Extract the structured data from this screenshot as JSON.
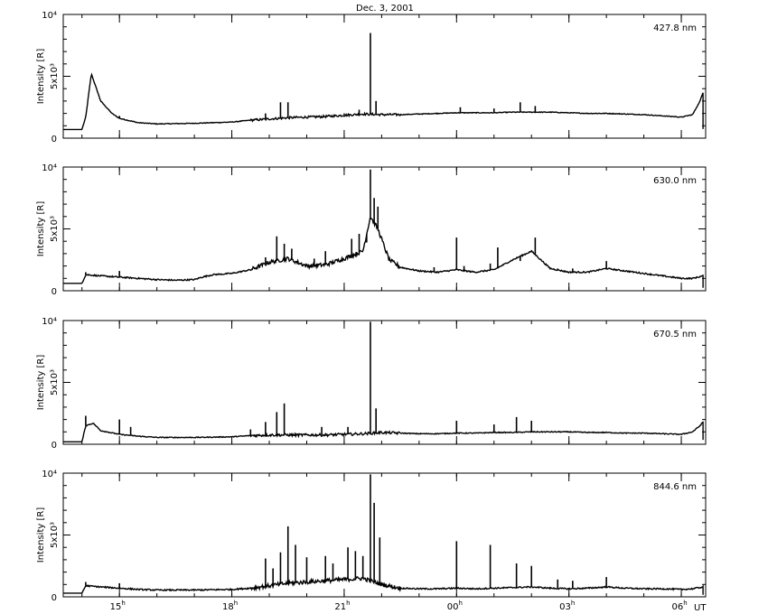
{
  "figure_title": "Dec.  3, 2001",
  "x_axis_unit": "UT",
  "chart_data": [
    {
      "type": "line",
      "label": "427.8 nm",
      "ylabel": "Intensity [R]",
      "ylim": [
        0,
        10000
      ],
      "ytick_labels": [
        "0",
        "5x10³",
        "10⁴"
      ],
      "x_unit": "UT hours (continuous, 24 = 00h next day)",
      "xlim": [
        13.5,
        30.65
      ],
      "xtick_labels": [
        "15h",
        "18h",
        "21h",
        "00h",
        "03h",
        "06h"
      ],
      "x": [
        13.5,
        14.0,
        14.1,
        14.25,
        14.5,
        14.8,
        15.0,
        15.5,
        16.0,
        17.0,
        18.0,
        18.5,
        19.0,
        19.5,
        20.0,
        20.5,
        21.0,
        21.5,
        22.0,
        22.5,
        23.0,
        23.5,
        24.0,
        24.5,
        25.0,
        25.5,
        26.0,
        26.5,
        27.0,
        27.5,
        28.0,
        28.5,
        29.0,
        29.5,
        30.0,
        30.3,
        30.5,
        30.58
      ],
      "y": [
        700,
        700,
        1700,
        5200,
        3000,
        2000,
        1600,
        1250,
        1150,
        1200,
        1300,
        1450,
        1550,
        1650,
        1700,
        1750,
        1850,
        1950,
        1900,
        1900,
        1950,
        2000,
        2050,
        2050,
        2050,
        2100,
        2100,
        2100,
        2050,
        2000,
        2000,
        1950,
        1900,
        1800,
        1700,
        1900,
        3000,
        3700
      ],
      "spikes": [
        {
          "x": 15.0,
          "y": 1800
        },
        {
          "x": 18.9,
          "y": 2000
        },
        {
          "x": 19.3,
          "y": 2900
        },
        {
          "x": 19.5,
          "y": 2900
        },
        {
          "x": 20.6,
          "y": 1900
        },
        {
          "x": 21.0,
          "y": 2000
        },
        {
          "x": 21.4,
          "y": 2300
        },
        {
          "x": 21.7,
          "y": 8500
        },
        {
          "x": 21.85,
          "y": 3000
        },
        {
          "x": 24.1,
          "y": 2500
        },
        {
          "x": 25.0,
          "y": 2400
        },
        {
          "x": 25.7,
          "y": 2900
        },
        {
          "x": 26.1,
          "y": 2600
        }
      ]
    },
    {
      "type": "line",
      "label": "630.0 nm",
      "ylabel": "Intensity [R]",
      "ylim": [
        0,
        10000
      ],
      "ytick_labels": [
        "0",
        "5x10³",
        "10⁴"
      ],
      "x_unit": "UT hours (continuous, 24 = 00h next day)",
      "xlim": [
        13.5,
        30.65
      ],
      "xtick_labels": [
        "15h",
        "18h",
        "21h",
        "00h",
        "03h",
        "06h"
      ],
      "x": [
        13.5,
        14.0,
        14.1,
        14.5,
        15.0,
        15.5,
        16.0,
        16.5,
        17.0,
        17.2,
        17.5,
        18.0,
        18.5,
        19.0,
        19.5,
        20.0,
        20.5,
        21.0,
        21.5,
        21.7,
        21.9,
        22.2,
        22.5,
        23.0,
        23.5,
        24.0,
        24.5,
        25.0,
        25.5,
        26.0,
        26.5,
        27.0,
        27.5,
        28.0,
        28.5,
        29.0,
        29.5,
        30.0,
        30.3,
        30.58
      ],
      "y": [
        600,
        600,
        1300,
        1200,
        1100,
        1000,
        900,
        850,
        900,
        1100,
        1300,
        1400,
        1700,
        2300,
        2600,
        2000,
        2100,
        2600,
        3200,
        6000,
        5000,
        2500,
        1900,
        1600,
        1500,
        1700,
        1500,
        1700,
        2500,
        3200,
        1800,
        1500,
        1500,
        1800,
        1600,
        1400,
        1200,
        1000,
        1000,
        1200
      ],
      "spikes": [
        {
          "x": 14.1,
          "y": 1500
        },
        {
          "x": 15.0,
          "y": 1600
        },
        {
          "x": 18.9,
          "y": 2700
        },
        {
          "x": 19.2,
          "y": 4400
        },
        {
          "x": 19.4,
          "y": 3800
        },
        {
          "x": 19.6,
          "y": 3400
        },
        {
          "x": 20.2,
          "y": 2600
        },
        {
          "x": 20.5,
          "y": 3200
        },
        {
          "x": 20.9,
          "y": 2400
        },
        {
          "x": 21.2,
          "y": 4200
        },
        {
          "x": 21.4,
          "y": 4600
        },
        {
          "x": 21.6,
          "y": 3900
        },
        {
          "x": 21.7,
          "y": 9800
        },
        {
          "x": 21.8,
          "y": 7500
        },
        {
          "x": 21.9,
          "y": 6800
        },
        {
          "x": 23.4,
          "y": 1900
        },
        {
          "x": 24.0,
          "y": 4300
        },
        {
          "x": 24.2,
          "y": 2000
        },
        {
          "x": 24.9,
          "y": 2200
        },
        {
          "x": 25.1,
          "y": 3500
        },
        {
          "x": 25.7,
          "y": 2400
        },
        {
          "x": 26.1,
          "y": 4300
        },
        {
          "x": 26.7,
          "y": 1800
        },
        {
          "x": 27.1,
          "y": 1800
        },
        {
          "x": 28.0,
          "y": 2400
        }
      ]
    },
    {
      "type": "line",
      "label": "670.5 nm",
      "ylabel": "Intensity [R]",
      "ylim": [
        0,
        10000
      ],
      "ytick_labels": [
        "0",
        "5x10³",
        "10⁴"
      ],
      "x_unit": "UT hours (continuous, 24 = 00h next day)",
      "xlim": [
        13.5,
        30.65
      ],
      "xtick_labels": [
        "15h",
        "18h",
        "21h",
        "00h",
        "03h",
        "06h"
      ],
      "x": [
        13.5,
        14.0,
        14.1,
        14.3,
        14.5,
        15.0,
        15.5,
        16.0,
        17.0,
        18.0,
        18.5,
        19.0,
        19.5,
        20.0,
        20.5,
        21.0,
        21.5,
        22.0,
        22.5,
        23.0,
        23.5,
        24.0,
        24.5,
        25.0,
        25.5,
        26.0,
        26.5,
        27.0,
        27.5,
        28.0,
        28.5,
        29.0,
        29.5,
        30.0,
        30.3,
        30.5,
        30.58
      ],
      "y": [
        200,
        200,
        1500,
        1700,
        1100,
        800,
        650,
        550,
        550,
        600,
        700,
        750,
        750,
        750,
        750,
        800,
        850,
        950,
        900,
        850,
        850,
        900,
        900,
        950,
        950,
        1000,
        1000,
        1000,
        950,
        950,
        900,
        900,
        850,
        800,
        1000,
        1500,
        1800
      ],
      "spikes": [
        {
          "x": 14.1,
          "y": 2300
        },
        {
          "x": 15.0,
          "y": 2000
        },
        {
          "x": 15.3,
          "y": 1400
        },
        {
          "x": 18.5,
          "y": 1200
        },
        {
          "x": 18.9,
          "y": 1800
        },
        {
          "x": 19.2,
          "y": 2600
        },
        {
          "x": 19.4,
          "y": 3300
        },
        {
          "x": 20.4,
          "y": 1400
        },
        {
          "x": 21.1,
          "y": 1400
        },
        {
          "x": 21.7,
          "y": 9900
        },
        {
          "x": 21.85,
          "y": 2900
        },
        {
          "x": 24.0,
          "y": 1900
        },
        {
          "x": 25.0,
          "y": 1600
        },
        {
          "x": 25.6,
          "y": 2200
        },
        {
          "x": 26.0,
          "y": 1900
        }
      ]
    },
    {
      "type": "line",
      "label": "844.6 nm",
      "ylabel": "Intensity [R]",
      "ylim": [
        0,
        10000
      ],
      "ytick_labels": [
        "0",
        "5x10³",
        "10⁴"
      ],
      "x_unit": "UT hours (continuous, 24 = 00h next day)",
      "xlim": [
        13.5,
        30.65
      ],
      "xtick_labels": [
        "15h",
        "18h",
        "21h",
        "00h",
        "03h",
        "06h"
      ],
      "x": [
        13.5,
        14.0,
        14.1,
        14.5,
        15.0,
        15.5,
        16.0,
        17.0,
        18.0,
        18.5,
        19.0,
        19.5,
        20.0,
        20.5,
        21.0,
        21.5,
        22.0,
        22.5,
        23.0,
        23.5,
        24.0,
        24.5,
        25.0,
        25.5,
        26.0,
        26.5,
        27.0,
        27.5,
        28.0,
        28.5,
        29.0,
        29.5,
        30.0,
        30.3,
        30.58
      ],
      "y": [
        300,
        300,
        900,
        800,
        700,
        600,
        550,
        550,
        600,
        700,
        900,
        1100,
        1200,
        1300,
        1400,
        1500,
        1000,
        700,
        650,
        650,
        700,
        650,
        700,
        750,
        800,
        700,
        650,
        700,
        800,
        700,
        650,
        650,
        600,
        650,
        800
      ],
      "spikes": [
        {
          "x": 14.1,
          "y": 1200
        },
        {
          "x": 15.0,
          "y": 1100
        },
        {
          "x": 18.9,
          "y": 3100
        },
        {
          "x": 19.1,
          "y": 2300
        },
        {
          "x": 19.3,
          "y": 3600
        },
        {
          "x": 19.5,
          "y": 5700
        },
        {
          "x": 19.7,
          "y": 4200
        },
        {
          "x": 20.0,
          "y": 3200
        },
        {
          "x": 20.5,
          "y": 3300
        },
        {
          "x": 20.7,
          "y": 2700
        },
        {
          "x": 21.1,
          "y": 4000
        },
        {
          "x": 21.3,
          "y": 3700
        },
        {
          "x": 21.5,
          "y": 3300
        },
        {
          "x": 21.7,
          "y": 9900
        },
        {
          "x": 21.8,
          "y": 7600
        },
        {
          "x": 21.95,
          "y": 4800
        },
        {
          "x": 24.0,
          "y": 4500
        },
        {
          "x": 24.9,
          "y": 4200
        },
        {
          "x": 25.6,
          "y": 2700
        },
        {
          "x": 26.0,
          "y": 2500
        },
        {
          "x": 26.7,
          "y": 1400
        },
        {
          "x": 27.1,
          "y": 1300
        },
        {
          "x": 28.0,
          "y": 1600
        }
      ]
    }
  ]
}
